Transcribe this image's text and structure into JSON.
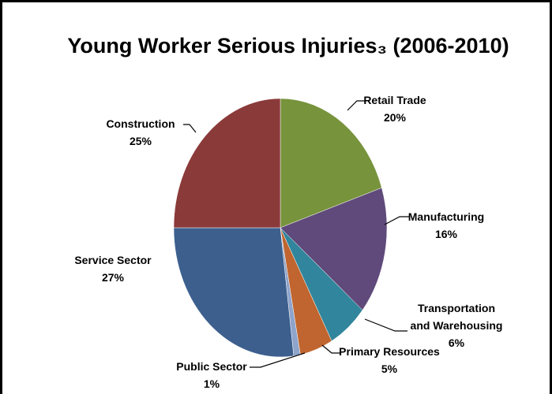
{
  "chart_data": {
    "type": "pie",
    "title": "Young Worker Serious Injuries₃ (2006-2010)",
    "categories": [
      "Retail Trade",
      "Manufacturing",
      "Transportation and Warehousing",
      "Primary Resources",
      "Public Sector",
      "Service Sector",
      "Construction"
    ],
    "values": [
      20,
      16,
      6,
      5,
      1,
      27,
      25
    ],
    "value_labels": [
      "20%",
      "16%",
      "6%",
      "5%",
      "1%",
      "27%",
      "25%"
    ],
    "colors": [
      "#77933c",
      "#604a7b",
      "#31859c",
      "#c0652f",
      "#8ea4cb",
      "#3c5f8e",
      "#8b3a3a"
    ]
  }
}
